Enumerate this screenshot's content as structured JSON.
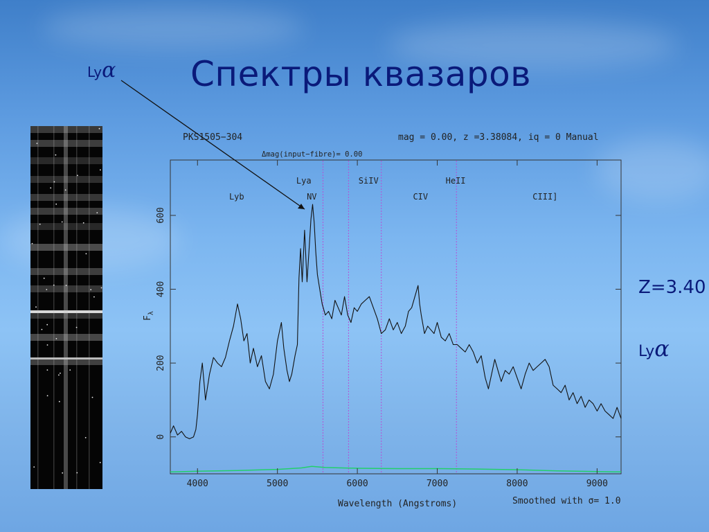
{
  "slide": {
    "title": "Спектры квазаров",
    "lya_label": "Ly",
    "alpha_symbol": "α",
    "redshift_label": "Z=3.40"
  },
  "chart_data": {
    "type": "line",
    "header_left": "PKS1505−304",
    "header_right": "mag =  0.00, z =3.38084, iq =  0 Manual",
    "subheader": "Δmag(input−fibre)=    0.00",
    "xlabel": "Wavelength (Angstroms)",
    "ylabel": "F",
    "ylabel_sub": "λ",
    "footnote": "Smoothed with σ= 1.0",
    "xlim": [
      3660,
      9300
    ],
    "ylim": [
      -100,
      750
    ],
    "xticks": [
      4000,
      5000,
      6000,
      7000,
      8000,
      9000
    ],
    "yticks": [
      0,
      200,
      400,
      600
    ],
    "line_markers": [
      {
        "label": "Lyb",
        "x": 4490,
        "row": "lower",
        "dotted": false
      },
      {
        "label": "Lya",
        "x": 5330,
        "row": "upper",
        "dotted": false
      },
      {
        "label": "NV",
        "x": 5430,
        "row": "lower",
        "dotted": false
      },
      {
        "label": "SiIV",
        "x": 6140,
        "row": "upper",
        "dotted": false
      },
      {
        "label": "CIV",
        "x": 6790,
        "row": "lower",
        "dotted": false
      },
      {
        "label": "HeII",
        "x": 7230,
        "row": "upper",
        "dotted": false
      },
      {
        "label": "CIII]",
        "x": 8350,
        "row": "lower",
        "dotted": false
      }
    ],
    "vertical_lines": [
      5570,
      5890,
      6300,
      7240
    ],
    "series": [
      {
        "color": "#111111",
        "points": [
          [
            3660,
            10
          ],
          [
            3700,
            30
          ],
          [
            3750,
            5
          ],
          [
            3800,
            15
          ],
          [
            3850,
            0
          ],
          [
            3900,
            -5
          ],
          [
            3950,
            0
          ],
          [
            3980,
            20
          ],
          [
            4000,
            60
          ],
          [
            4030,
            150
          ],
          [
            4060,
            200
          ],
          [
            4100,
            100
          ],
          [
            4150,
            170
          ],
          [
            4200,
            215
          ],
          [
            4250,
            200
          ],
          [
            4300,
            190
          ],
          [
            4350,
            215
          ],
          [
            4400,
            260
          ],
          [
            4450,
            300
          ],
          [
            4500,
            360
          ],
          [
            4540,
            320
          ],
          [
            4580,
            260
          ],
          [
            4620,
            280
          ],
          [
            4660,
            200
          ],
          [
            4700,
            240
          ],
          [
            4750,
            190
          ],
          [
            4800,
            220
          ],
          [
            4850,
            150
          ],
          [
            4900,
            130
          ],
          [
            4950,
            170
          ],
          [
            5000,
            260
          ],
          [
            5050,
            310
          ],
          [
            5080,
            240
          ],
          [
            5120,
            180
          ],
          [
            5150,
            150
          ],
          [
            5180,
            170
          ],
          [
            5220,
            220
          ],
          [
            5250,
            250
          ],
          [
            5270,
            430
          ],
          [
            5290,
            510
          ],
          [
            5310,
            420
          ],
          [
            5340,
            560
          ],
          [
            5370,
            420
          ],
          [
            5400,
            520
          ],
          [
            5420,
            590
          ],
          [
            5440,
            630
          ],
          [
            5460,
            580
          ],
          [
            5480,
            500
          ],
          [
            5500,
            440
          ],
          [
            5530,
            400
          ],
          [
            5560,
            360
          ],
          [
            5600,
            330
          ],
          [
            5640,
            340
          ],
          [
            5680,
            320
          ],
          [
            5720,
            370
          ],
          [
            5760,
            350
          ],
          [
            5800,
            330
          ],
          [
            5840,
            380
          ],
          [
            5880,
            330
          ],
          [
            5920,
            310
          ],
          [
            5960,
            350
          ],
          [
            6000,
            340
          ],
          [
            6050,
            360
          ],
          [
            6100,
            370
          ],
          [
            6150,
            380
          ],
          [
            6200,
            350
          ],
          [
            6250,
            320
          ],
          [
            6300,
            280
          ],
          [
            6350,
            290
          ],
          [
            6400,
            320
          ],
          [
            6450,
            290
          ],
          [
            6500,
            310
          ],
          [
            6550,
            280
          ],
          [
            6600,
            300
          ],
          [
            6640,
            340
          ],
          [
            6680,
            350
          ],
          [
            6720,
            380
          ],
          [
            6760,
            410
          ],
          [
            6780,
            360
          ],
          [
            6800,
            330
          ],
          [
            6840,
            280
          ],
          [
            6880,
            300
          ],
          [
            6920,
            290
          ],
          [
            6960,
            280
          ],
          [
            7000,
            310
          ],
          [
            7050,
            270
          ],
          [
            7100,
            260
          ],
          [
            7150,
            280
          ],
          [
            7200,
            250
          ],
          [
            7250,
            250
          ],
          [
            7300,
            240
          ],
          [
            7350,
            230
          ],
          [
            7400,
            250
          ],
          [
            7450,
            230
          ],
          [
            7500,
            200
          ],
          [
            7550,
            220
          ],
          [
            7600,
            160
          ],
          [
            7640,
            130
          ],
          [
            7680,
            170
          ],
          [
            7720,
            210
          ],
          [
            7760,
            180
          ],
          [
            7800,
            150
          ],
          [
            7850,
            180
          ],
          [
            7900,
            170
          ],
          [
            7950,
            190
          ],
          [
            8000,
            160
          ],
          [
            8050,
            130
          ],
          [
            8100,
            170
          ],
          [
            8150,
            200
          ],
          [
            8200,
            180
          ],
          [
            8250,
            190
          ],
          [
            8300,
            200
          ],
          [
            8350,
            210
          ],
          [
            8400,
            190
          ],
          [
            8450,
            140
          ],
          [
            8500,
            130
          ],
          [
            8550,
            120
          ],
          [
            8600,
            140
          ],
          [
            8650,
            100
          ],
          [
            8700,
            120
          ],
          [
            8750,
            90
          ],
          [
            8800,
            110
          ],
          [
            8850,
            80
          ],
          [
            8900,
            100
          ],
          [
            8950,
            90
          ],
          [
            9000,
            70
          ],
          [
            9050,
            90
          ],
          [
            9100,
            70
          ],
          [
            9150,
            60
          ],
          [
            9200,
            50
          ],
          [
            9250,
            80
          ],
          [
            9300,
            50
          ]
        ]
      },
      {
        "color": "#22d06a",
        "points": [
          [
            3660,
            -95
          ],
          [
            4000,
            -93
          ],
          [
            4500,
            -91
          ],
          [
            5000,
            -88
          ],
          [
            5300,
            -84
          ],
          [
            5430,
            -80
          ],
          [
            5600,
            -83
          ],
          [
            6000,
            -85
          ],
          [
            6500,
            -86
          ],
          [
            7000,
            -86
          ],
          [
            7500,
            -87
          ],
          [
            8000,
            -89
          ],
          [
            8500,
            -92
          ],
          [
            9000,
            -94
          ],
          [
            9300,
            -95
          ]
        ]
      }
    ]
  }
}
